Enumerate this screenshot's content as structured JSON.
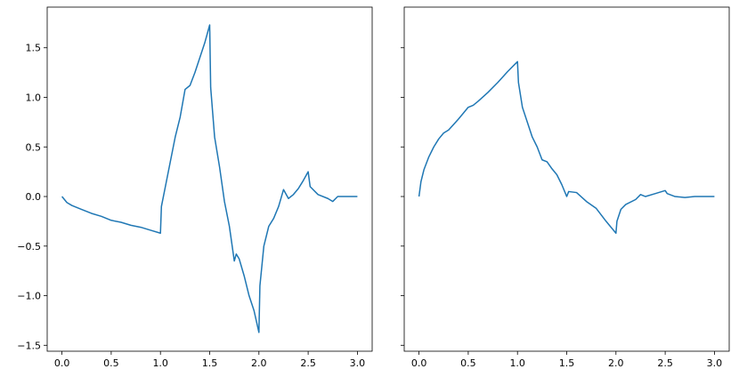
{
  "chart_data": [
    {
      "type": "line",
      "color": "#1f77b4",
      "xlim": [
        -0.15,
        3.15
      ],
      "xticks": [
        {
          "value": 0,
          "label": "0.0"
        },
        0.5,
        {
          "value": 1,
          "label": "1.0"
        },
        1.5,
        {
          "value": 2,
          "label": "2.0"
        },
        2.5,
        {
          "value": 3,
          "label": "3.0"
        }
      ],
      "ylim": [
        -1.56,
        1.91
      ],
      "yticks": [
        {
          "value": -1.5,
          "label": "−1.5"
        },
        {
          "value": -1,
          "label": "−1.0"
        },
        {
          "value": -0.5,
          "label": "−0.5"
        },
        {
          "value": 0,
          "label": "0.0"
        },
        0.5,
        {
          "value": 1,
          "label": "1.0"
        },
        1.5
      ],
      "x": [
        0,
        0.05,
        0.1,
        0.2,
        0.3,
        0.4,
        0.5,
        0.6,
        0.7,
        0.8,
        0.9,
        1.0,
        1.01,
        1.05,
        1.1,
        1.15,
        1.2,
        1.25,
        1.3,
        1.35,
        1.4,
        1.45,
        1.5,
        1.51,
        1.55,
        1.6,
        1.65,
        1.7,
        1.75,
        1.77,
        1.8,
        1.85,
        1.9,
        1.95,
        2.0,
        2.01,
        2.05,
        2.1,
        2.15,
        2.2,
        2.25,
        2.3,
        2.35,
        2.4,
        2.45,
        2.5,
        2.52,
        2.6,
        2.7,
        2.75,
        2.8,
        2.9,
        3.0
      ],
      "values": [
        0,
        -0.06,
        -0.09,
        -0.13,
        -0.17,
        -0.2,
        -0.24,
        -0.26,
        -0.29,
        -0.31,
        -0.34,
        -0.37,
        -0.1,
        0.1,
        0.35,
        0.6,
        0.8,
        1.08,
        1.12,
        1.25,
        1.4,
        1.55,
        1.73,
        1.1,
        0.6,
        0.3,
        -0.05,
        -0.3,
        -0.65,
        -0.58,
        -0.63,
        -0.8,
        -1.0,
        -1.15,
        -1.37,
        -0.9,
        -0.5,
        -0.3,
        -0.22,
        -0.1,
        0.07,
        -0.02,
        0.02,
        0.08,
        0.16,
        0.25,
        0.1,
        0.02,
        -0.02,
        -0.05,
        0.0,
        0.0,
        0.0
      ]
    },
    {
      "type": "line",
      "color": "#1f77b4",
      "sharey": true,
      "xlim": [
        -0.15,
        3.15
      ],
      "xticks": [
        {
          "value": 0,
          "label": "0.0"
        },
        0.5,
        {
          "value": 1,
          "label": "1.0"
        },
        1.5,
        {
          "value": 2,
          "label": "2.0"
        },
        2.5,
        {
          "value": 3,
          "label": "3.0"
        }
      ],
      "x": [
        0,
        0.02,
        0.05,
        0.1,
        0.15,
        0.2,
        0.25,
        0.3,
        0.4,
        0.5,
        0.55,
        0.6,
        0.7,
        0.8,
        0.9,
        1.0,
        1.01,
        1.05,
        1.1,
        1.15,
        1.2,
        1.25,
        1.3,
        1.35,
        1.4,
        1.45,
        1.5,
        1.52,
        1.6,
        1.7,
        1.8,
        1.9,
        2.0,
        2.01,
        2.05,
        2.1,
        2.2,
        2.25,
        2.3,
        2.4,
        2.5,
        2.52,
        2.6,
        2.7,
        2.8,
        3.0
      ],
      "values": [
        0,
        0.15,
        0.27,
        0.4,
        0.5,
        0.58,
        0.64,
        0.67,
        0.78,
        0.9,
        0.92,
        0.96,
        1.05,
        1.15,
        1.26,
        1.36,
        1.15,
        0.9,
        0.75,
        0.6,
        0.5,
        0.37,
        0.35,
        0.28,
        0.22,
        0.12,
        0.0,
        0.05,
        0.04,
        -0.05,
        -0.12,
        -0.25,
        -0.37,
        -0.25,
        -0.13,
        -0.08,
        -0.03,
        0.02,
        0.0,
        0.03,
        0.06,
        0.03,
        0.0,
        -0.01,
        0.0,
        0.0
      ]
    }
  ]
}
